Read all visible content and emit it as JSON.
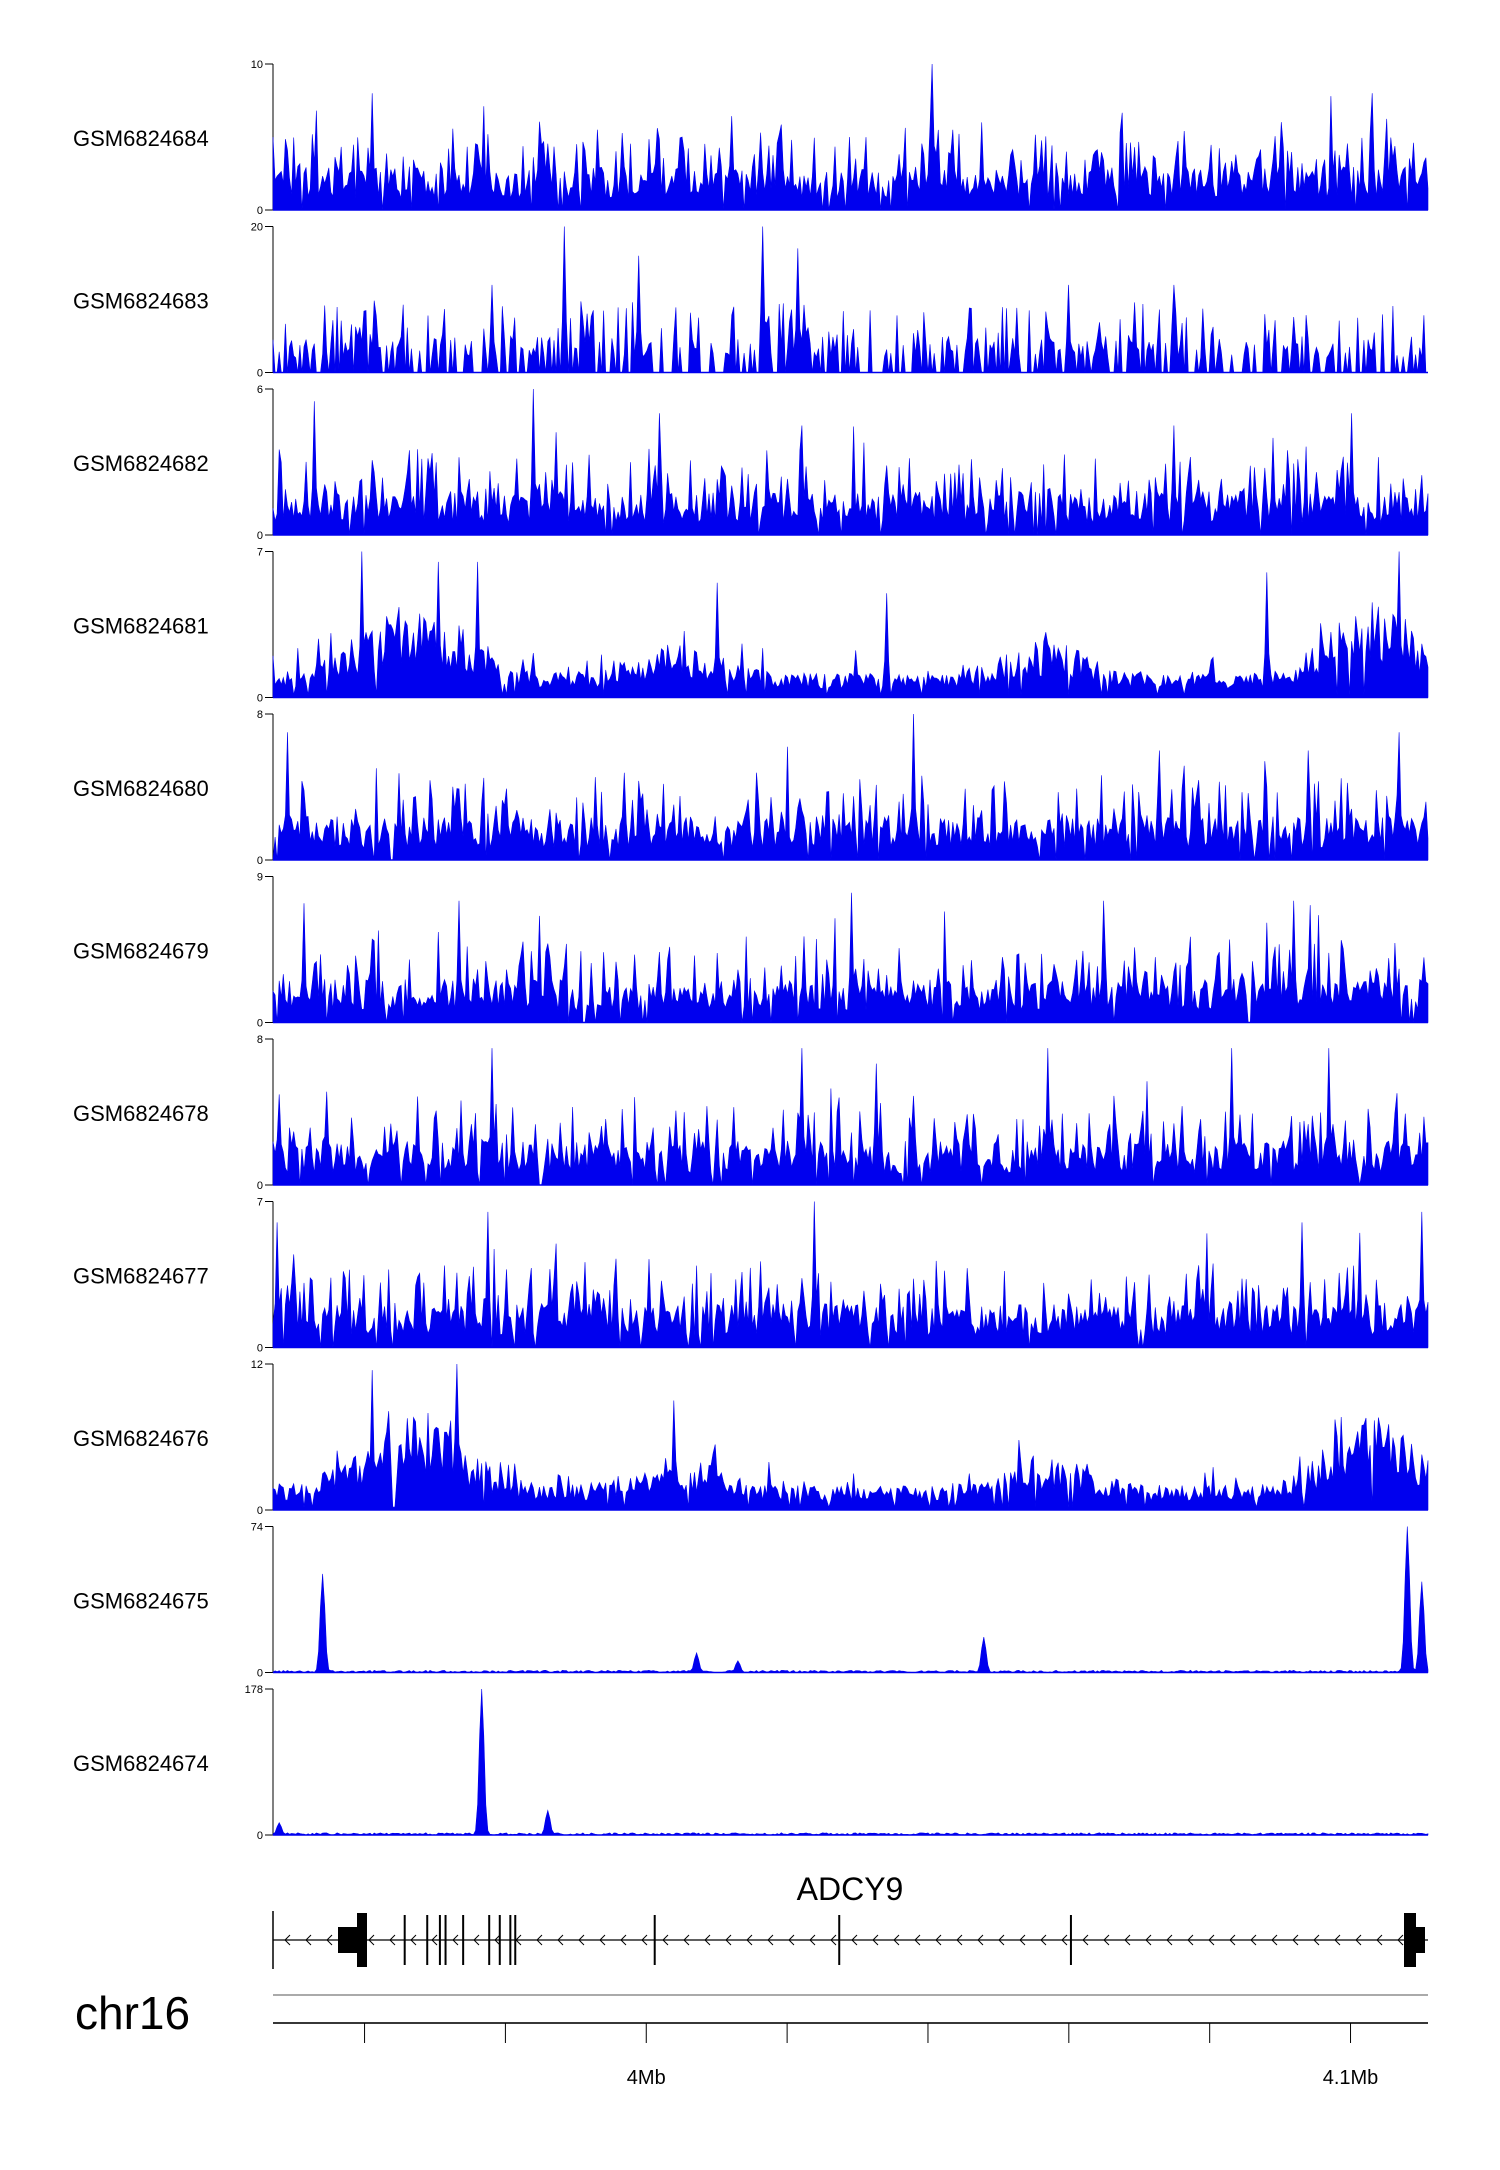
{
  "chart_data": {
    "type": "area",
    "chromosome": "chr16",
    "gene": {
      "name": "ADCY9",
      "strand": "-",
      "start": 3953000,
      "end": 4117000
    },
    "x_range": [
      3947000,
      4111000
    ],
    "x_ticks": [
      3960000,
      3980000,
      4000000,
      4020000,
      4040000,
      4060000,
      4080000,
      4100000
    ],
    "x_tick_labels": [
      {
        "value": 4000000,
        "label": "4Mb"
      },
      {
        "value": 4100000,
        "label": "4.1Mb"
      }
    ],
    "exons": [
      3954300,
      3956000,
      3957200,
      3965700,
      3968900,
      3970700,
      3971500,
      3974000,
      3977700,
      3979200,
      3980700,
      3981400,
      4001200,
      4027400,
      4060300
    ],
    "color": "#0000ee",
    "tracks": [
      {
        "name": "GSM6824684",
        "ymax": 10,
        "ymin": 0,
        "profile": "dense",
        "peaks": [
          [
            3961000,
            8
          ],
          [
            3993000,
            5.5
          ],
          [
            4005000,
            5
          ],
          [
            4040500,
            8
          ],
          [
            4040500,
            10
          ],
          [
            4047500,
            6
          ],
          [
            4103000,
            8
          ]
        ]
      },
      {
        "name": "GSM6824683",
        "ymax": 20,
        "ymin": 0,
        "profile": "gapped",
        "peaks": [
          [
            3988500,
            20
          ],
          [
            4016500,
            20
          ],
          [
            3978000,
            12
          ],
          [
            4021500,
            17
          ],
          [
            3999000,
            16
          ],
          [
            4060000,
            12
          ],
          [
            4075000,
            12
          ]
        ]
      },
      {
        "name": "GSM6824682",
        "ymax": 6,
        "ymin": 0,
        "profile": "dense",
        "peaks": [
          [
            3953000,
            5.5
          ],
          [
            3984000,
            6
          ],
          [
            4002000,
            5
          ],
          [
            4022000,
            4.5
          ],
          [
            4075000,
            4.5
          ],
          [
            4100000,
            5
          ]
        ]
      },
      {
        "name": "GSM6824681",
        "ymax": 7,
        "ymin": 0,
        "profile": "clustered",
        "peaks": [
          [
            3959500,
            7
          ],
          [
            3970500,
            6.5
          ],
          [
            3976000,
            6.5
          ],
          [
            4010000,
            5.5
          ],
          [
            4034000,
            5
          ],
          [
            4088000,
            6
          ],
          [
            4107000,
            7
          ]
        ]
      },
      {
        "name": "GSM6824680",
        "ymax": 8,
        "ymin": 0,
        "profile": "dense",
        "peaks": [
          [
            3949000,
            7
          ],
          [
            4038000,
            8
          ],
          [
            4073000,
            6
          ],
          [
            4094000,
            6
          ],
          [
            4107000,
            7
          ]
        ]
      },
      {
        "name": "GSM6824679",
        "ymax": 9,
        "ymin": 0,
        "profile": "dense",
        "peaks": [
          [
            3973500,
            7.5
          ],
          [
            4029000,
            8
          ],
          [
            4065000,
            7.5
          ],
          [
            4092000,
            7.5
          ]
        ]
      },
      {
        "name": "GSM6824678",
        "ymax": 8,
        "ymin": 0,
        "profile": "dense",
        "peaks": [
          [
            3978000,
            7.5
          ],
          [
            4022000,
            7.5
          ],
          [
            4057000,
            7.5
          ],
          [
            4083000,
            7.5
          ],
          [
            4097000,
            7.5
          ]
        ]
      },
      {
        "name": "GSM6824677",
        "ymax": 7,
        "ymin": 0,
        "profile": "dense",
        "peaks": [
          [
            3947500,
            6
          ],
          [
            3977500,
            6.5
          ],
          [
            4024000,
            7
          ],
          [
            4093000,
            6
          ],
          [
            4110000,
            6.5
          ]
        ]
      },
      {
        "name": "GSM6824676",
        "ymax": 12,
        "ymin": 0,
        "profile": "clustered",
        "peaks": [
          [
            3961000,
            11.5
          ],
          [
            3973000,
            12
          ],
          [
            4004000,
            9
          ],
          [
            4102000,
            7
          ]
        ]
      },
      {
        "name": "GSM6824675",
        "ymax": 74,
        "ymin": 0,
        "profile": "peaks",
        "peaks": [
          [
            3954000,
            50
          ],
          [
            4007000,
            10
          ],
          [
            4013000,
            6
          ],
          [
            4048000,
            18
          ],
          [
            4108000,
            74
          ],
          [
            4110000,
            46
          ]
        ]
      },
      {
        "name": "GSM6824674",
        "ymax": 178,
        "ymin": 0,
        "profile": "peaks",
        "peaks": [
          [
            3976500,
            178
          ],
          [
            3986000,
            30
          ],
          [
            3948000,
            15
          ]
        ]
      }
    ]
  }
}
